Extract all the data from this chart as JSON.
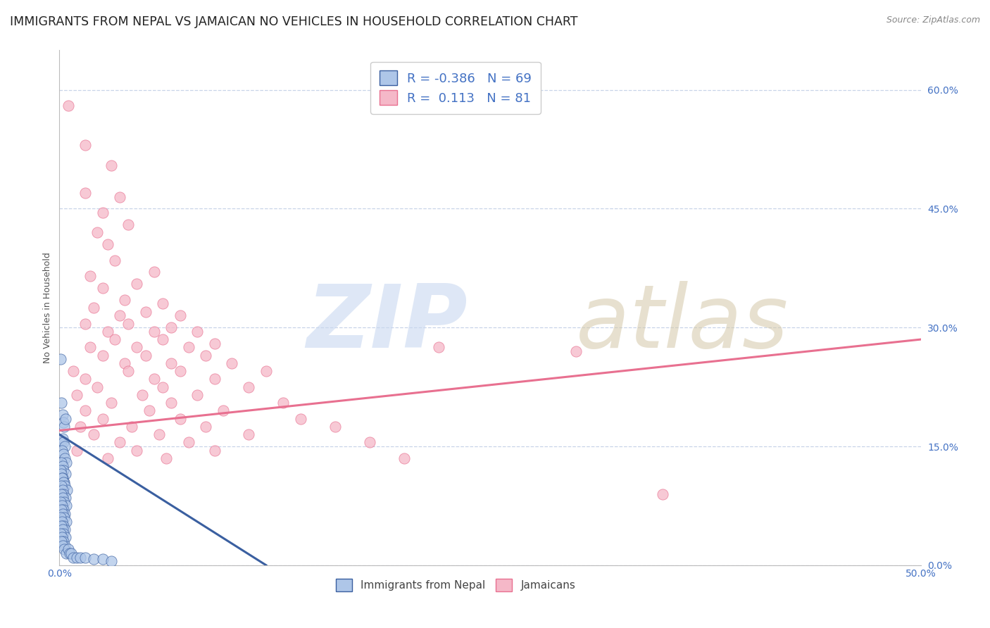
{
  "title": "IMMIGRANTS FROM NEPAL VS JAMAICAN NO VEHICLES IN HOUSEHOLD CORRELATION CHART",
  "source": "Source: ZipAtlas.com",
  "ylabel": "No Vehicles in Household",
  "ytick_values": [
    0.0,
    15.0,
    30.0,
    45.0,
    60.0
  ],
  "xlim": [
    0.0,
    50.0
  ],
  "ylim": [
    0.0,
    65.0
  ],
  "color_nepal": "#aec6e8",
  "color_jamaica": "#f5b8c8",
  "color_line_nepal": "#3a5fa0",
  "color_line_jamaica": "#e87090",
  "background_color": "#ffffff",
  "grid_color": "#c8d4e8",
  "title_fontsize": 12.5,
  "tick_color": "#4472c4",
  "nepal_scatter": [
    [
      0.08,
      26.0
    ],
    [
      0.12,
      20.5
    ],
    [
      0.18,
      19.0
    ],
    [
      0.22,
      18.0
    ],
    [
      0.28,
      17.5
    ],
    [
      0.35,
      18.5
    ],
    [
      0.12,
      15.5
    ],
    [
      0.18,
      16.0
    ],
    [
      0.25,
      15.5
    ],
    [
      0.32,
      15.0
    ],
    [
      0.15,
      14.5
    ],
    [
      0.22,
      14.0
    ],
    [
      0.3,
      13.5
    ],
    [
      0.4,
      13.0
    ],
    [
      0.1,
      13.0
    ],
    [
      0.18,
      12.5
    ],
    [
      0.25,
      12.0
    ],
    [
      0.35,
      11.5
    ],
    [
      0.08,
      12.0
    ],
    [
      0.12,
      11.5
    ],
    [
      0.2,
      11.0
    ],
    [
      0.28,
      10.5
    ],
    [
      0.15,
      11.0
    ],
    [
      0.22,
      10.5
    ],
    [
      0.3,
      10.0
    ],
    [
      0.42,
      9.5
    ],
    [
      0.12,
      10.0
    ],
    [
      0.18,
      9.5
    ],
    [
      0.25,
      9.0
    ],
    [
      0.35,
      8.5
    ],
    [
      0.1,
      9.0
    ],
    [
      0.18,
      8.5
    ],
    [
      0.28,
      8.0
    ],
    [
      0.4,
      7.5
    ],
    [
      0.08,
      8.0
    ],
    [
      0.15,
      7.5
    ],
    [
      0.22,
      7.0
    ],
    [
      0.3,
      6.5
    ],
    [
      0.12,
      7.0
    ],
    [
      0.2,
      6.5
    ],
    [
      0.28,
      6.0
    ],
    [
      0.38,
      5.5
    ],
    [
      0.08,
      6.0
    ],
    [
      0.15,
      5.5
    ],
    [
      0.22,
      5.0
    ],
    [
      0.32,
      4.5
    ],
    [
      0.1,
      5.0
    ],
    [
      0.18,
      4.5
    ],
    [
      0.25,
      4.0
    ],
    [
      0.35,
      3.5
    ],
    [
      0.08,
      4.0
    ],
    [
      0.15,
      3.5
    ],
    [
      0.22,
      3.0
    ],
    [
      0.3,
      2.5
    ],
    [
      0.12,
      3.0
    ],
    [
      0.2,
      2.5
    ],
    [
      0.28,
      2.0
    ],
    [
      0.38,
      1.5
    ],
    [
      0.5,
      2.0
    ],
    [
      0.6,
      1.5
    ],
    [
      0.7,
      1.5
    ],
    [
      0.8,
      1.0
    ],
    [
      1.0,
      1.0
    ],
    [
      1.2,
      1.0
    ],
    [
      1.5,
      1.0
    ],
    [
      2.0,
      0.8
    ],
    [
      2.5,
      0.8
    ],
    [
      3.0,
      0.5
    ]
  ],
  "jamaica_scatter": [
    [
      0.5,
      58.0
    ],
    [
      1.5,
      53.0
    ],
    [
      3.0,
      50.5
    ],
    [
      1.5,
      47.0
    ],
    [
      3.5,
      46.5
    ],
    [
      2.5,
      44.5
    ],
    [
      2.2,
      42.0
    ],
    [
      4.0,
      43.0
    ],
    [
      2.8,
      40.5
    ],
    [
      3.2,
      38.5
    ],
    [
      5.5,
      37.0
    ],
    [
      1.8,
      36.5
    ],
    [
      2.5,
      35.0
    ],
    [
      4.5,
      35.5
    ],
    [
      3.8,
      33.5
    ],
    [
      6.0,
      33.0
    ],
    [
      2.0,
      32.5
    ],
    [
      5.0,
      32.0
    ],
    [
      3.5,
      31.5
    ],
    [
      7.0,
      31.5
    ],
    [
      1.5,
      30.5
    ],
    [
      4.0,
      30.5
    ],
    [
      6.5,
      30.0
    ],
    [
      2.8,
      29.5
    ],
    [
      5.5,
      29.5
    ],
    [
      8.0,
      29.5
    ],
    [
      3.2,
      28.5
    ],
    [
      6.0,
      28.5
    ],
    [
      9.0,
      28.0
    ],
    [
      1.8,
      27.5
    ],
    [
      4.5,
      27.5
    ],
    [
      7.5,
      27.5
    ],
    [
      2.5,
      26.5
    ],
    [
      5.0,
      26.5
    ],
    [
      8.5,
      26.5
    ],
    [
      3.8,
      25.5
    ],
    [
      6.5,
      25.5
    ],
    [
      10.0,
      25.5
    ],
    [
      0.8,
      24.5
    ],
    [
      4.0,
      24.5
    ],
    [
      7.0,
      24.5
    ],
    [
      12.0,
      24.5
    ],
    [
      1.5,
      23.5
    ],
    [
      5.5,
      23.5
    ],
    [
      9.0,
      23.5
    ],
    [
      2.2,
      22.5
    ],
    [
      6.0,
      22.5
    ],
    [
      11.0,
      22.5
    ],
    [
      1.0,
      21.5
    ],
    [
      4.8,
      21.5
    ],
    [
      8.0,
      21.5
    ],
    [
      3.0,
      20.5
    ],
    [
      6.5,
      20.5
    ],
    [
      13.0,
      20.5
    ],
    [
      1.5,
      19.5
    ],
    [
      5.2,
      19.5
    ],
    [
      9.5,
      19.5
    ],
    [
      2.5,
      18.5
    ],
    [
      7.0,
      18.5
    ],
    [
      14.0,
      18.5
    ],
    [
      1.2,
      17.5
    ],
    [
      4.2,
      17.5
    ],
    [
      8.5,
      17.5
    ],
    [
      16.0,
      17.5
    ],
    [
      2.0,
      16.5
    ],
    [
      5.8,
      16.5
    ],
    [
      11.0,
      16.5
    ],
    [
      3.5,
      15.5
    ],
    [
      7.5,
      15.5
    ],
    [
      18.0,
      15.5
    ],
    [
      1.0,
      14.5
    ],
    [
      4.5,
      14.5
    ],
    [
      9.0,
      14.5
    ],
    [
      2.8,
      13.5
    ],
    [
      6.2,
      13.5
    ],
    [
      20.0,
      13.5
    ],
    [
      35.0,
      9.0
    ],
    [
      22.0,
      27.5
    ],
    [
      30.0,
      27.0
    ]
  ],
  "nepal_line_x": [
    0.0,
    12.0
  ],
  "nepal_line_y": [
    16.5,
    0.0
  ],
  "jamaica_line_x": [
    0.0,
    50.0
  ],
  "jamaica_line_y": [
    17.0,
    28.5
  ]
}
